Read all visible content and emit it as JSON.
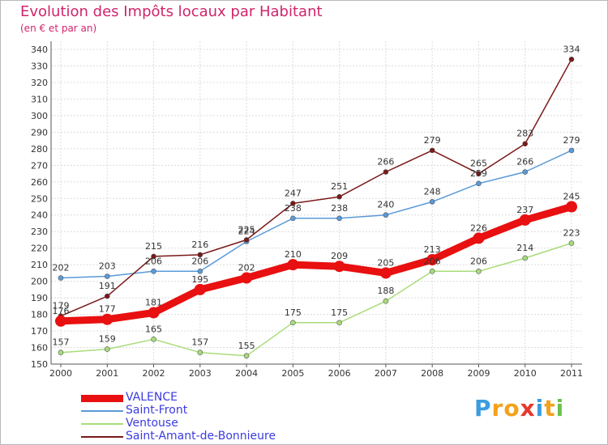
{
  "title": "Evolution des Impôts locaux par Habitant",
  "subtitle": "(en € et par an)",
  "logo": {
    "letters": [
      "P",
      "r",
      "o",
      "x",
      "i",
      "t",
      "i"
    ],
    "colors": [
      "#3a9de0",
      "#f2a21b",
      "#f2a21b",
      "#e8362e",
      "#3a9de0",
      "#f2a21b",
      "#6cc04a"
    ]
  },
  "chart_data": {
    "type": "line",
    "x": [
      "2000",
      "2001",
      "2002",
      "2003",
      "2004",
      "2005",
      "2006",
      "2007",
      "2008",
      "2009",
      "2010",
      "2011"
    ],
    "ylim": [
      150,
      340
    ],
    "yticks": [
      150,
      160,
      170,
      180,
      190,
      200,
      210,
      220,
      230,
      240,
      250,
      260,
      270,
      280,
      290,
      300,
      310,
      320,
      330,
      340
    ],
    "grid": true,
    "legend_position": "bottom-left",
    "series": [
      {
        "name": "VALENCE",
        "color": "#e81010",
        "width": 9,
        "marker_r": 7,
        "values": [
          176,
          177,
          181,
          195,
          202,
          210,
          209,
          205,
          213,
          226,
          237,
          245
        ]
      },
      {
        "name": "Saint-Front",
        "color": "#5a9ad8",
        "width": 1.5,
        "marker_r": 3,
        "values": [
          202,
          203,
          206,
          206,
          224,
          238,
          238,
          240,
          248,
          259,
          266,
          279
        ]
      },
      {
        "name": "Ventouse",
        "color": "#a8dc7a",
        "width": 1.5,
        "marker_r": 3,
        "values": [
          157,
          159,
          165,
          157,
          155,
          175,
          175,
          188,
          206,
          206,
          214,
          223
        ]
      },
      {
        "name": "Saint-Amant-de-Bonnieure",
        "color": "#7a1818",
        "width": 1.5,
        "marker_r": 3,
        "values": [
          179,
          191,
          215,
          216,
          225,
          247,
          251,
          266,
          279,
          265,
          283,
          334
        ]
      }
    ]
  }
}
